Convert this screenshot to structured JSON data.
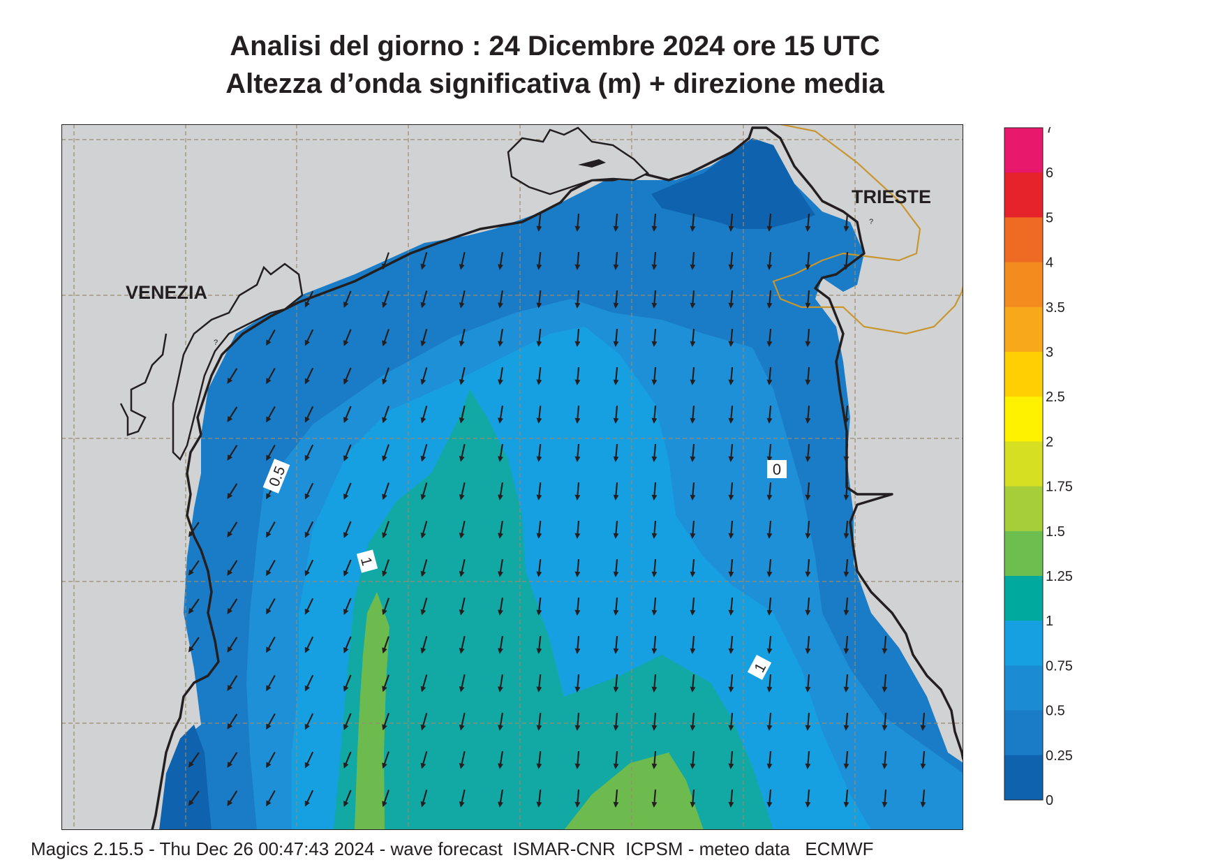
{
  "title": {
    "line1": "Analisi del giorno :  24 Dicembre  2024   ore 15 UTC",
    "line2": "Altezza d’onda significativa (m) + direzione media"
  },
  "map": {
    "cities": [
      {
        "name": "VENEZIA"
      },
      {
        "name": "TRIESTE"
      }
    ],
    "contour_labels": [
      "0.5",
      "1",
      "1",
      "0"
    ],
    "colors": {
      "land": "#d1d2d4",
      "coast": "#231f20",
      "border": "#c8962e",
      "grid": "#9a8a6e",
      "arrow": "#231f20",
      "band_0_0.25": "#0f62ad",
      "band_0.25_0.5": "#1a7cc6",
      "band_0.5_0.75": "#1e90d8",
      "band_0.75_1": "#16a0e2",
      "band_1_1.25": "#12a9a4",
      "band_1.25_1.5": "#6dbb4f"
    },
    "mean_direction": "towards south-southwest"
  },
  "legend": {
    "labels": [
      "7",
      "6",
      "5",
      "4",
      "3.5",
      "3",
      "2.5",
      "2",
      "1.75",
      "1.5",
      "1.25",
      "1",
      "0.75",
      "0.5",
      "0.25",
      "0"
    ],
    "colors": [
      "#e8196d",
      "#e6232a",
      "#ef6a23",
      "#f48b1f",
      "#f7a81b",
      "#fed003",
      "#fff200",
      "#d7df23",
      "#a6ce39",
      "#6cbe4f",
      "#00a99d",
      "#16a0e2",
      "#1b8bd3",
      "#1a7cc6",
      "#0f62ad"
    ]
  },
  "footer": "Magics 2.15.5 - Thu Dec 26 00:47:43 2024 - wave forecast  ISMAR-CNR  ICPSM - meteo data   ECMWF"
}
